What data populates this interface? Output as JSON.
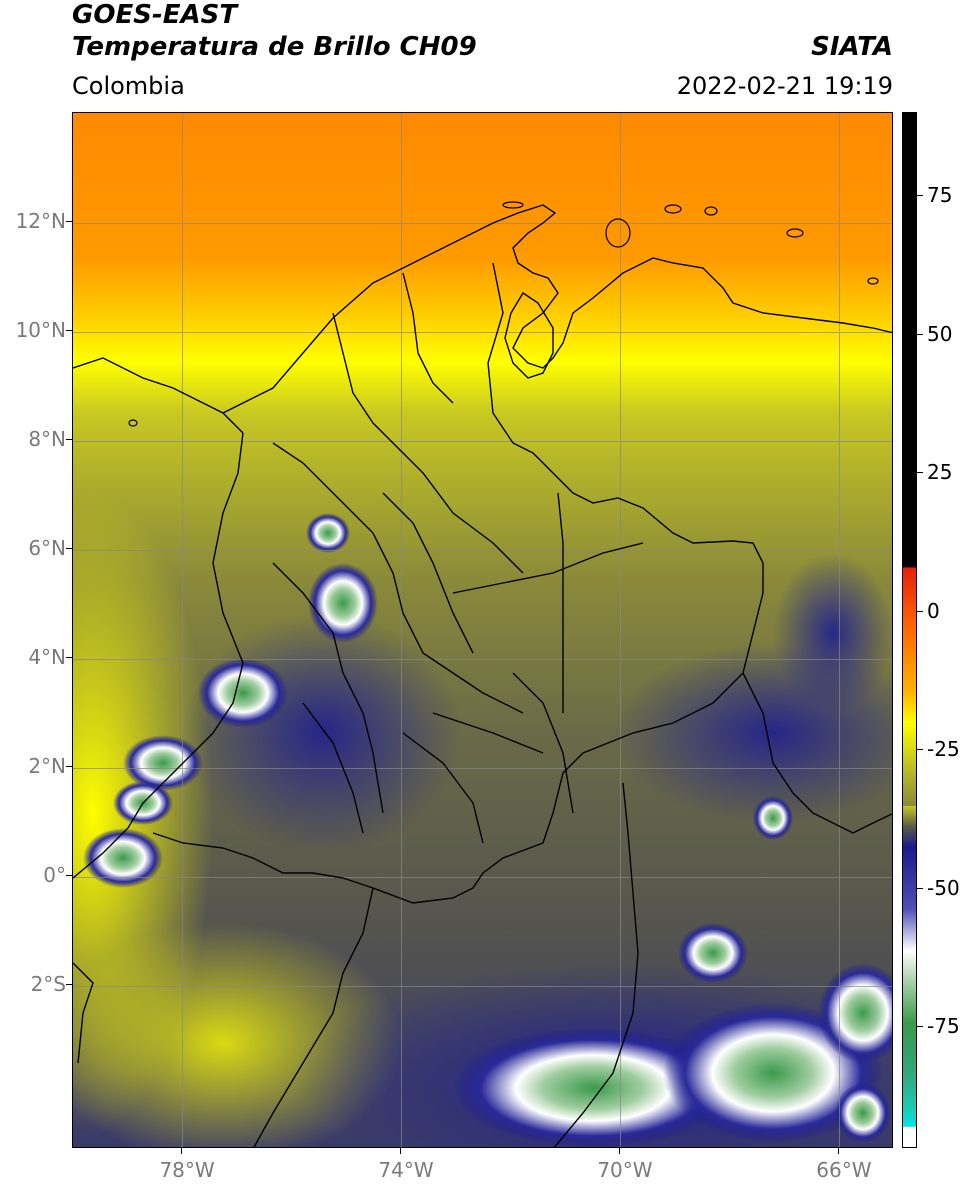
{
  "header": {
    "title_line1": "GOES-EAST",
    "title_line2": "Temperatura de Brillo CH09",
    "subtitle": "Colombia",
    "organization": "SIATA",
    "datetime": "2022-02-21 19:19"
  },
  "map": {
    "region": "Colombia",
    "lon_range": [
      -80,
      -65
    ],
    "lat_range": [
      -5,
      14
    ],
    "lat_ticks": [
      {
        "value": 12,
        "label": "12°N"
      },
      {
        "value": 10,
        "label": "10°N"
      },
      {
        "value": 8,
        "label": "8°N"
      },
      {
        "value": 6,
        "label": "6°N"
      },
      {
        "value": 4,
        "label": "4°N"
      },
      {
        "value": 2,
        "label": "2°N"
      },
      {
        "value": 0,
        "label": "0°"
      },
      {
        "value": -2,
        "label": "2°S"
      }
    ],
    "lon_ticks": [
      {
        "value": -78,
        "label": "78°W"
      },
      {
        "value": -74,
        "label": "74°W"
      },
      {
        "value": -70,
        "label": "70°W"
      },
      {
        "value": -66,
        "label": "66°W"
      }
    ],
    "grid": true
  },
  "colorbar": {
    "range": [
      -97,
      90
    ],
    "ticks": [
      {
        "value": 75,
        "label": "75"
      },
      {
        "value": 50,
        "label": "50"
      },
      {
        "value": 25,
        "label": "25"
      },
      {
        "value": 0,
        "label": "0"
      },
      {
        "value": -25,
        "label": "-25"
      },
      {
        "value": -50,
        "label": "-50"
      },
      {
        "value": -75,
        "label": "-75"
      }
    ],
    "colors": {
      "black": "#000000",
      "red": "#e8200c",
      "orange": "#ff8a00",
      "yellow": "#ffff00",
      "olive": "#9a9a2a",
      "gray": "#5a5a4a",
      "navy": "#1a1a8c",
      "white": "#ffffff",
      "green": "#3a9a4a",
      "teal": "#20c8b0",
      "cyan": "#00e5e5"
    }
  }
}
